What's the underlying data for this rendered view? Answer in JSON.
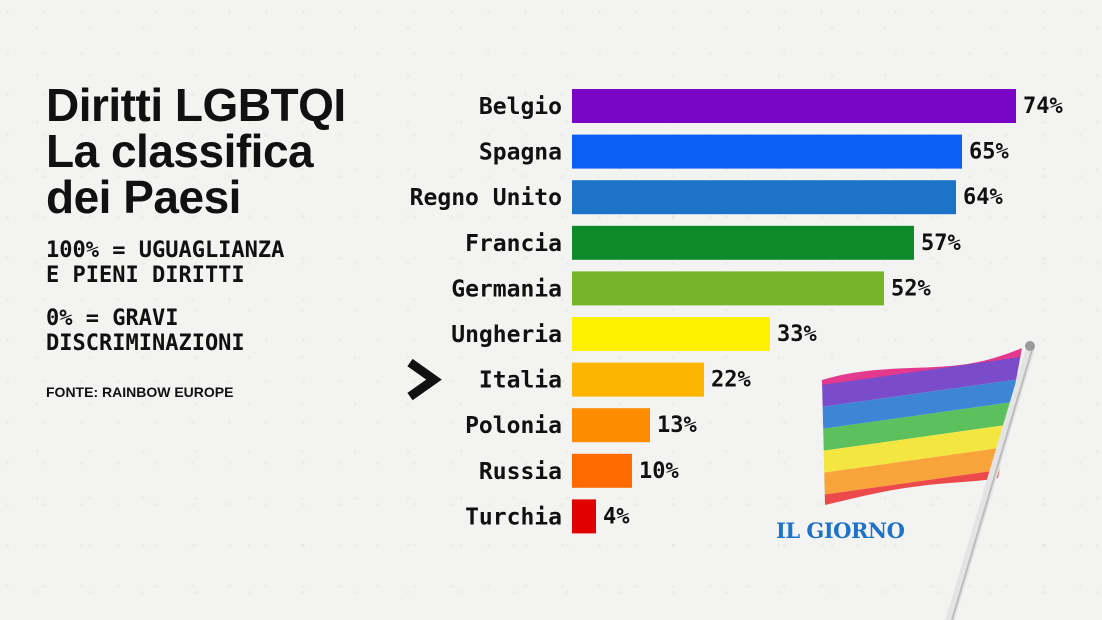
{
  "title_lines": [
    "Diritti LGBTQI",
    "La classifica",
    "dei Paesi"
  ],
  "note_equality": [
    "100% = UGUAGLIANZA",
    "E PIENI DIRITTI"
  ],
  "note_discrimination": [
    "0% = GRAVI",
    "DISCRIMINAZIONI"
  ],
  "source": "FONTE: RAINBOW EUROPE",
  "brand": "IL GIORNO",
  "icons": {
    "highlight_marker": "chevron-right-icon",
    "flag": "rainbow-flag-icon"
  },
  "colors": {
    "text": "#111111",
    "brand": "#1d73c9"
  },
  "chart_data": {
    "type": "bar",
    "orientation": "horizontal",
    "unit": "%",
    "xlim": [
      0,
      100
    ],
    "highlight": "Italia",
    "categories": [
      "Belgio",
      "Spagna",
      "Regno Unito",
      "Francia",
      "Germania",
      "Ungheria",
      "Italia",
      "Polonia",
      "Russia",
      "Turchia"
    ],
    "values": [
      74,
      65,
      64,
      57,
      52,
      33,
      22,
      13,
      10,
      4
    ],
    "colors": [
      "#7a05c7",
      "#0d5ef5",
      "#1c74c8",
      "#0e8a2a",
      "#76b52a",
      "#fff201",
      "#fdb500",
      "#fe8c00",
      "#fe6a00",
      "#e10000"
    ]
  }
}
